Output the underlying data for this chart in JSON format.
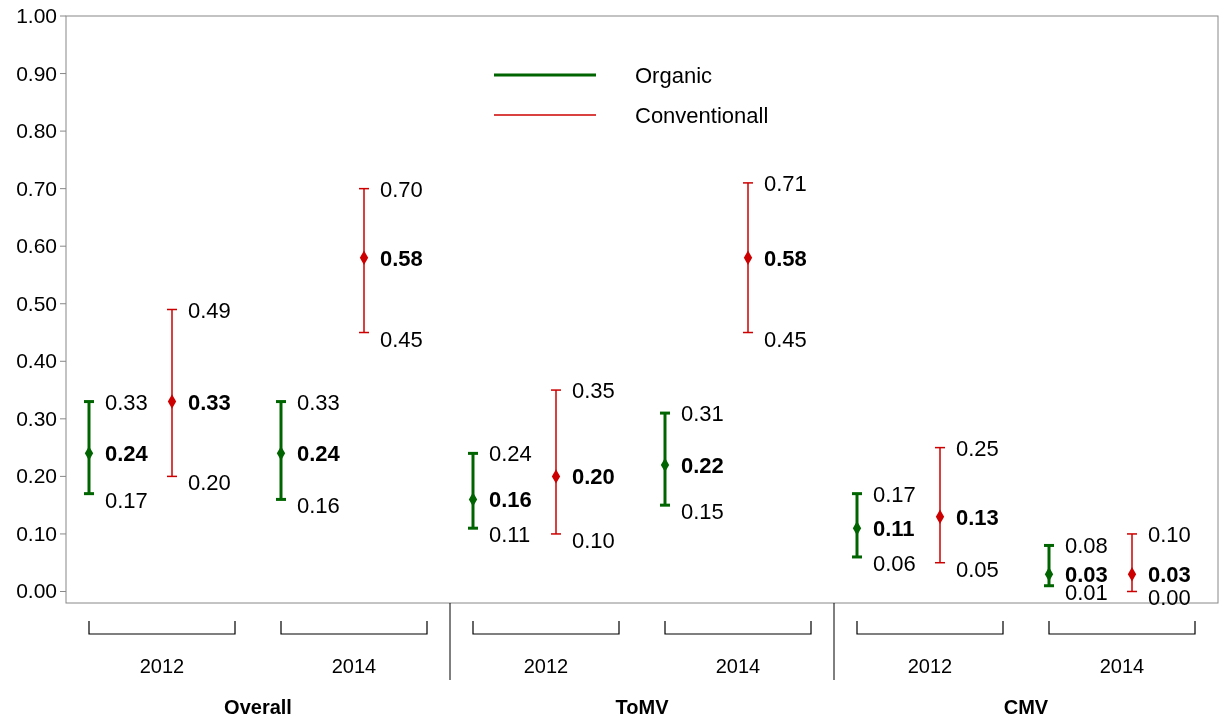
{
  "chart_data": {
    "type": "scatter",
    "categories": [
      "2012",
      "2014",
      "2012",
      "2014",
      "2012",
      "2014"
    ],
    "annotations": [
      "Overall",
      "ToMV",
      "CMV",
      "0.33",
      "0.17",
      "0.33",
      "0.16",
      "0.24",
      "0.11",
      "0.31",
      "0.15",
      "0.17",
      "0.06",
      "0.08",
      "0.01",
      "0.49",
      "0.20",
      "0.70",
      "0.45",
      "0.35",
      "0.10",
      "0.71",
      "0.45",
      "0.25",
      "0.05",
      "0.10",
      "0.00"
    ],
    "ylim": [
      -0.02,
      1
    ],
    "yticks": [
      {
        "value": 0,
        "label": "0.00"
      },
      {
        "value": 0.1,
        "label": "0.10"
      },
      {
        "value": 0.2,
        "label": "0.20"
      },
      {
        "value": 0.3,
        "label": "0.30"
      },
      {
        "value": 0.4,
        "label": "0.40"
      },
      {
        "value": 0.5,
        "label": "0.50"
      },
      {
        "value": 0.6,
        "label": "0.60"
      },
      {
        "value": 0.7,
        "label": "0.70"
      },
      {
        "value": 0.8,
        "label": "0.80"
      },
      {
        "value": 0.9,
        "label": "0.90"
      },
      {
        "value": 1,
        "label": "1.00"
      }
    ],
    "marker": "diamond",
    "legend": "top",
    "grid": false,
    "series": [
      {
        "name": "Organic",
        "color": "#006400",
        "values": [
          0.24,
          0.24,
          0.16,
          0.22,
          0.11,
          0.03
        ],
        "value_labels": [
          "0.24",
          "0.24",
          "0.16",
          "0.22",
          "0.11",
          "0.03"
        ],
        "errors": [
          [
            0.17,
            0.33
          ],
          [
            0.16,
            0.33
          ],
          [
            0.11,
            0.24
          ],
          [
            0.15,
            0.31
          ],
          [
            0.06,
            0.17
          ],
          [
            0.01,
            0.08
          ]
        ]
      },
      {
        "name": "Conventionall",
        "color": "#cc0000",
        "values": [
          0.33,
          0.58,
          0.2,
          0.58,
          0.13,
          0.03
        ],
        "value_labels": [
          "0.33",
          "0.58",
          "0.20",
          "0.58",
          "0.13",
          "0.03"
        ],
        "errors": [
          [
            0.2,
            0.49
          ],
          [
            0.45,
            0.7
          ],
          [
            0.1,
            0.35
          ],
          [
            0.45,
            0.71
          ],
          [
            0.05,
            0.25
          ],
          [
            0.0,
            0.1
          ]
        ]
      }
    ]
  }
}
